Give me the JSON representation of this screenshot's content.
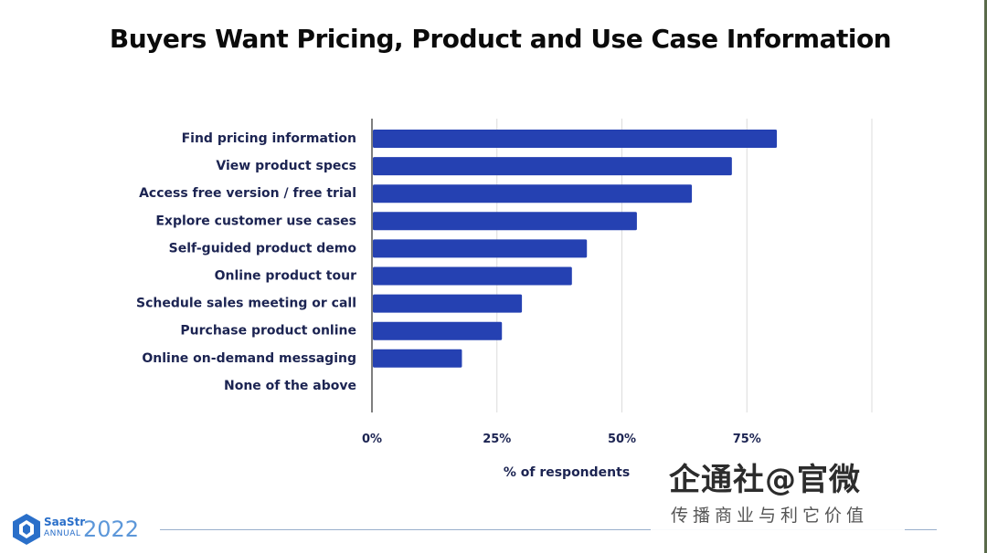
{
  "slide": {
    "title": "Buyers Want Pricing, Product and Use Case Information"
  },
  "chart_data": {
    "type": "bar",
    "orientation": "horizontal",
    "title": "Buyers Want Pricing, Product and Use Case Information",
    "categories": [
      "Find pricing information",
      "View product specs",
      "Access free version / free trial",
      "Explore customer use cases",
      "Self-guided product demo",
      "Online product tour",
      "Schedule sales meeting or call",
      "Purchase product online",
      "Online on-demand messaging",
      "None of the above"
    ],
    "values": [
      81,
      72,
      64,
      53,
      43,
      40,
      30,
      26,
      18,
      0
    ],
    "xlabel": "% of respondents",
    "ylabel": "",
    "xlim": [
      0,
      100
    ],
    "xticks": [
      "0%",
      "25%",
      "50%",
      "75%"
    ],
    "xtick_values": [
      0,
      25,
      50,
      75
    ],
    "grid": true,
    "bar_color": "#2541b2",
    "grid_color": "#dcdcdc",
    "text_color": "#1c2452"
  },
  "footer": {
    "logo_name": "SaaStr",
    "logo_annual": "ANNUAL",
    "logo_year": "2022"
  },
  "watermark": {
    "main": "企通社@官微",
    "sub": "传播商业与利它价值"
  }
}
